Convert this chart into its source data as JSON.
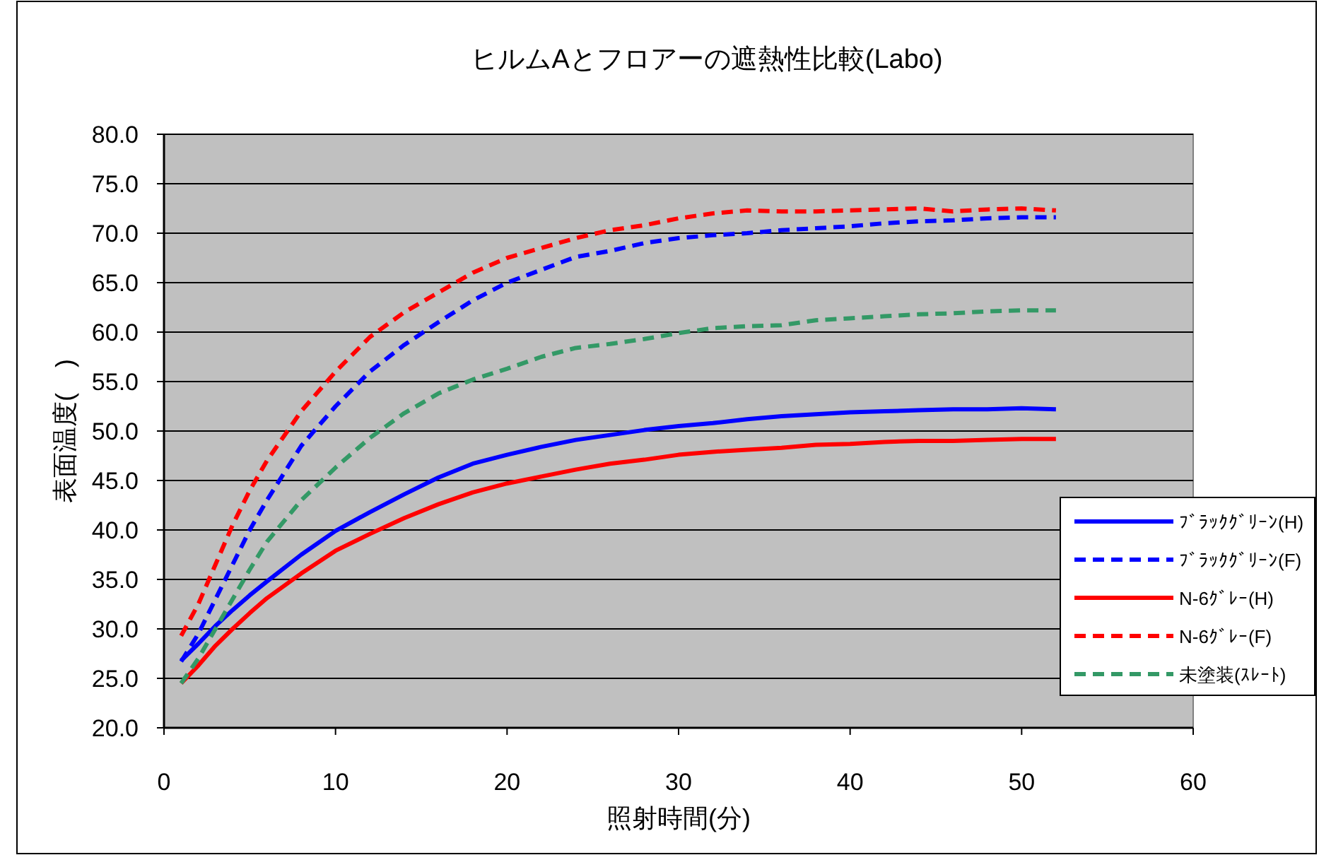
{
  "chart_data": {
    "type": "line",
    "title": "ヒルムAとフロアーの遮熱性比較(Labo)",
    "xlabel": "照射時間(分)",
    "ylabel": "表面温度(　)",
    "x": [
      1,
      2,
      3,
      4,
      5,
      6,
      8,
      10,
      12,
      14,
      16,
      18,
      20,
      22,
      24,
      26,
      28,
      30,
      32,
      34,
      36,
      38,
      40,
      42,
      44,
      46,
      48,
      50,
      52
    ],
    "series": [
      {
        "name": "ﾌﾞﾗｯｸｸﾞﾘｰﾝ(H)",
        "color": "#0000ff",
        "line_style": "solid",
        "values": [
          26.8,
          28.5,
          30.3,
          31.9,
          33.4,
          34.8,
          37.5,
          39.9,
          41.8,
          43.6,
          45.3,
          46.7,
          47.6,
          48.4,
          49.1,
          49.6,
          50.1,
          50.5,
          50.8,
          51.2,
          51.5,
          51.7,
          51.9,
          52.0,
          52.1,
          52.2,
          52.2,
          52.3,
          52.2
        ]
      },
      {
        "name": "ﾌﾞﾗｯｸｸﾞﾘｰﾝ(F)",
        "color": "#0000ff",
        "line_style": "dashed",
        "values": [
          26.7,
          29.5,
          33.0,
          36.5,
          40.0,
          43.0,
          48.5,
          52.5,
          56.0,
          58.7,
          61.0,
          63.2,
          65.0,
          66.3,
          67.6,
          68.2,
          69.0,
          69.5,
          69.8,
          70.0,
          70.3,
          70.5,
          70.7,
          71.0,
          71.2,
          71.3,
          71.5,
          71.6,
          71.6
        ]
      },
      {
        "name": "N-6ｸﾞﾚｰ(H)",
        "color": "#ff0000",
        "line_style": "solid",
        "values": [
          24.5,
          26.3,
          28.3,
          30.0,
          31.6,
          33.1,
          35.6,
          37.9,
          39.6,
          41.2,
          42.6,
          43.8,
          44.7,
          45.4,
          46.1,
          46.7,
          47.1,
          47.6,
          47.9,
          48.1,
          48.3,
          48.6,
          48.7,
          48.9,
          49.0,
          49.0,
          49.1,
          49.2,
          49.2
        ]
      },
      {
        "name": "N-6ｸﾞﾚｰ(F)",
        "color": "#ff0000",
        "line_style": "dashed",
        "values": [
          29.3,
          32.5,
          36.5,
          40.5,
          44.0,
          47.0,
          52.0,
          56.0,
          59.5,
          62.0,
          64.0,
          66.0,
          67.5,
          68.5,
          69.5,
          70.3,
          70.8,
          71.5,
          72.0,
          72.3,
          72.2,
          72.2,
          72.3,
          72.4,
          72.5,
          72.2,
          72.4,
          72.5,
          72.3
        ]
      },
      {
        "name": "未塗装(ｽﾚｰﾄ)",
        "color": "#339966",
        "line_style": "dashed",
        "values": [
          24.5,
          27.0,
          30.0,
          33.0,
          36.0,
          38.8,
          43.0,
          46.3,
          49.3,
          51.8,
          53.8,
          55.2,
          56.3,
          57.5,
          58.4,
          58.8,
          59.3,
          59.9,
          60.4,
          60.6,
          60.7,
          61.2,
          61.4,
          61.6,
          61.8,
          61.9,
          62.1,
          62.2,
          62.2
        ]
      }
    ],
    "xlim": [
      0,
      60
    ],
    "xticks": [
      0,
      10,
      20,
      30,
      40,
      50,
      60
    ],
    "ylim": [
      20,
      80
    ],
    "yticks": [
      {
        "value": 20,
        "label": "20.0"
      },
      {
        "value": 25,
        "label": "25.0"
      },
      {
        "value": 30,
        "label": "30.0"
      },
      {
        "value": 35,
        "label": "35.0"
      },
      {
        "value": 40,
        "label": "40.0"
      },
      {
        "value": 45,
        "label": "45.0"
      },
      {
        "value": 50,
        "label": "50.0"
      },
      {
        "value": 55,
        "label": "55.0"
      },
      {
        "value": 60,
        "label": "60.0"
      },
      {
        "value": 65,
        "label": "65.0"
      },
      {
        "value": 70,
        "label": "70.0"
      },
      {
        "value": 75,
        "label": "75.0"
      },
      {
        "value": 80,
        "label": "80.0"
      }
    ],
    "grid": "y",
    "legend": "right",
    "marker": "none"
  }
}
